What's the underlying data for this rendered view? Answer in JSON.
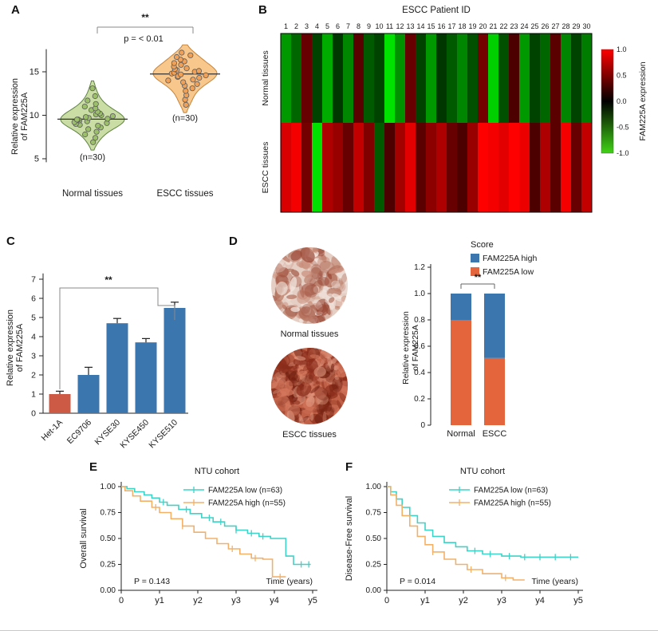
{
  "panel_labels": [
    "A",
    "B",
    "C",
    "D",
    "E",
    "F"
  ],
  "chart_data": [
    {
      "id": "A",
      "type": "violin",
      "ylabel_lines": [
        "Relative expression",
        "of FAM225A"
      ],
      "yticks": [
        5,
        10,
        15
      ],
      "ylim": [
        4.5,
        18.5
      ],
      "significance": "**",
      "p_label": "p = < 0.01",
      "groups": [
        {
          "name": "Normal tissues",
          "n_label": "(n=30)",
          "fill": "#c9dda5",
          "stroke": "#5f8440",
          "point_fill": "#9cc06a",
          "median": 9.55,
          "values": [
            6.9,
            7.4,
            7.8,
            8.1,
            8.4,
            8.6,
            8.8,
            8.9,
            9.0,
            9.1,
            9.2,
            9.3,
            9.4,
            9.5,
            9.5,
            9.6,
            9.7,
            9.8,
            9.9,
            10.0,
            10.1,
            10.2,
            10.4,
            10.6,
            10.8,
            11.0,
            11.3,
            11.7,
            12.2,
            13.1
          ]
        },
        {
          "name": "ESCC tissues",
          "n_label": "(n=30)",
          "fill": "#f8c78c",
          "stroke": "#c6853c",
          "point_fill": "#f1a157",
          "median": 14.75,
          "values": [
            11.2,
            11.8,
            12.3,
            12.8,
            13.1,
            13.4,
            13.6,
            13.8,
            14.0,
            14.1,
            14.3,
            14.4,
            14.5,
            14.6,
            14.7,
            14.8,
            14.9,
            15.0,
            15.1,
            15.2,
            15.3,
            15.4,
            15.6,
            15.8,
            16.0,
            16.2,
            16.4,
            16.7,
            16.9,
            17.2
          ]
        }
      ]
    },
    {
      "id": "B",
      "type": "heatmap",
      "title": "ESCC Patient ID",
      "columns": [
        "1",
        "2",
        "3",
        "4",
        "5",
        "6",
        "7",
        "8",
        "9",
        "10",
        "11",
        "12",
        "13",
        "14",
        "15",
        "16",
        "17",
        "18",
        "19",
        "20",
        "21",
        "22",
        "23",
        "24",
        "25",
        "26",
        "27",
        "28",
        "29",
        "30"
      ],
      "rows": [
        {
          "name": "Normal tissues",
          "values": [
            -0.6,
            -0.35,
            0.3,
            -0.2,
            -0.7,
            -0.15,
            -0.5,
            0.25,
            -0.3,
            -0.2,
            -1.0,
            -0.55,
            0.3,
            -0.2,
            -0.6,
            -0.15,
            -0.3,
            -0.5,
            -0.25,
            0.35,
            -0.9,
            -0.25,
            0.2,
            -0.6,
            -0.2,
            -0.35,
            0.25,
            -0.5,
            -0.2,
            -0.45
          ]
        },
        {
          "name": "ESCC tissues",
          "values": [
            0.8,
            0.95,
            0.35,
            -1.0,
            0.6,
            0.5,
            0.3,
            0.7,
            0.4,
            -0.3,
            0.2,
            0.55,
            0.85,
            0.25,
            0.45,
            0.6,
            0.3,
            0.2,
            0.5,
            1.0,
            0.95,
            0.85,
            1.0,
            0.9,
            0.2,
            0.6,
            0.25,
            0.95,
            0.3,
            0.7
          ]
        }
      ],
      "colorbar": {
        "title": "FAM225A expression",
        "ticks": [
          1.0,
          0.5,
          0.0,
          -0.5,
          -1.0
        ],
        "max_color": "#ff0000",
        "mid_color": "#000000",
        "min_color": "#3fd314"
      }
    },
    {
      "id": "C",
      "type": "bar",
      "categories": [
        "Het-1A",
        "EC9706",
        "KYSE30",
        "KYSE450",
        "KYSE510"
      ],
      "values": [
        1.0,
        2.0,
        4.7,
        3.7,
        5.5
      ],
      "errors": [
        0.15,
        0.4,
        0.25,
        0.2,
        0.3
      ],
      "bar_colors": [
        "#cd5a44",
        "#3c76ae",
        "#3c76ae",
        "#3c76ae",
        "#3c76ae"
      ],
      "ylabel_lines": [
        "Relative expression",
        "of FAM225A"
      ],
      "yticks": [
        0,
        1,
        2,
        3,
        4,
        5,
        6,
        7
      ],
      "ylim": [
        0,
        7
      ],
      "significance": "**"
    },
    {
      "id": "D",
      "type": "stacked_bar_with_images",
      "images": [
        {
          "caption": "Normal tissues",
          "base": "#e5cfc4",
          "blob_colors": [
            "#9c4a38",
            "#c98d7a",
            "#f2e6df",
            "#b06a55"
          ],
          "density": 150,
          "seed": 7
        },
        {
          "caption": "ESCC tissues",
          "base": "#bf6047",
          "blob_colors": [
            "#8a2c1a",
            "#d3765c",
            "#701f10",
            "#e09a82"
          ],
          "density": 240,
          "seed": 13
        }
      ],
      "legend": {
        "title": "Score",
        "items": [
          {
            "label": "FAM225A high",
            "color": "#3c76ae"
          },
          {
            "label": "FAM225A low",
            "color": "#e4643c"
          }
        ]
      },
      "categories": [
        "Normal",
        "ESCC"
      ],
      "series": [
        {
          "name": "FAM225A low",
          "color": "#e4643c",
          "values": [
            0.8,
            0.51
          ]
        },
        {
          "name": "FAM225A high",
          "color": "#3c76ae",
          "values": [
            0.2,
            0.49
          ]
        }
      ],
      "ylabel_lines": [
        "Relative expression",
        "of FAM225A"
      ],
      "yticks": [
        0,
        0.2,
        0.4,
        0.6,
        0.8,
        1.0,
        1.2
      ],
      "ylim": [
        0,
        1.2
      ],
      "significance": "**"
    },
    {
      "id": "E",
      "type": "km",
      "title": "NTU cohort",
      "ylabel": "Overall survival",
      "xlabel": "Time (years)",
      "p_label": "P = 0.143",
      "yticks": [
        1.0,
        0.75,
        0.5,
        0.25,
        0.0
      ],
      "xticks": [
        "0",
        "y1",
        "y2",
        "y3",
        "y4",
        "y5"
      ],
      "series": [
        {
          "name": "FAM225A low (n=63)",
          "color": "#3fd2c7",
          "steps": [
            [
              0,
              1.0
            ],
            [
              0.15,
              0.98
            ],
            [
              0.35,
              0.95
            ],
            [
              0.6,
              0.92
            ],
            [
              0.8,
              0.89
            ],
            [
              1.0,
              0.85
            ],
            [
              1.2,
              0.82
            ],
            [
              1.5,
              0.78
            ],
            [
              1.8,
              0.74
            ],
            [
              2.1,
              0.7
            ],
            [
              2.4,
              0.66
            ],
            [
              2.7,
              0.62
            ],
            [
              3.0,
              0.58
            ],
            [
              3.3,
              0.55
            ],
            [
              3.6,
              0.52
            ],
            [
              3.9,
              0.5
            ],
            [
              4.2,
              0.5
            ],
            [
              4.3,
              0.33
            ],
            [
              4.5,
              0.25
            ],
            [
              4.95,
              0.25
            ]
          ],
          "censors": [
            1.1,
            1.7,
            2.3,
            2.6,
            3.0,
            3.4,
            3.7,
            4.7,
            4.9
          ]
        },
        {
          "name": "FAM225A high (n=55)",
          "color": "#f3b168",
          "steps": [
            [
              0,
              1.0
            ],
            [
              0.1,
              0.96
            ],
            [
              0.3,
              0.91
            ],
            [
              0.5,
              0.86
            ],
            [
              0.8,
              0.8
            ],
            [
              1.0,
              0.75
            ],
            [
              1.3,
              0.69
            ],
            [
              1.6,
              0.62
            ],
            [
              1.9,
              0.56
            ],
            [
              2.2,
              0.5
            ],
            [
              2.5,
              0.45
            ],
            [
              2.8,
              0.4
            ],
            [
              3.1,
              0.35
            ],
            [
              3.4,
              0.31
            ],
            [
              3.7,
              0.3
            ],
            [
              3.95,
              0.13
            ],
            [
              4.3,
              0.13
            ]
          ],
          "censors": [
            0.9,
            1.6,
            2.9,
            3.5,
            4.15
          ]
        }
      ]
    },
    {
      "id": "F",
      "type": "km",
      "title": "NTU cohort",
      "ylabel": "Disease-Free survival",
      "xlabel": "Time (years)",
      "p_label": "P = 0.014",
      "yticks": [
        1.0,
        0.75,
        0.5,
        0.25,
        0.0
      ],
      "xticks": [
        "0",
        "y1",
        "y2",
        "y3",
        "y4",
        "y5"
      ],
      "series": [
        {
          "name": "FAM225A low (n=63)",
          "color": "#3fd2c7",
          "steps": [
            [
              0,
              1.0
            ],
            [
              0.1,
              0.95
            ],
            [
              0.25,
              0.88
            ],
            [
              0.4,
              0.8
            ],
            [
              0.6,
              0.72
            ],
            [
              0.8,
              0.65
            ],
            [
              1.0,
              0.58
            ],
            [
              1.2,
              0.52
            ],
            [
              1.5,
              0.46
            ],
            [
              1.8,
              0.42
            ],
            [
              2.1,
              0.38
            ],
            [
              2.5,
              0.35
            ],
            [
              3.0,
              0.33
            ],
            [
              3.5,
              0.32
            ],
            [
              4.0,
              0.32
            ],
            [
              5.0,
              0.32
            ]
          ],
          "censors": [
            2.3,
            2.7,
            3.2,
            3.6,
            4.0,
            4.4,
            4.8
          ]
        },
        {
          "name": "FAM225A high (n=55)",
          "color": "#f3b168",
          "steps": [
            [
              0,
              1.0
            ],
            [
              0.1,
              0.92
            ],
            [
              0.25,
              0.82
            ],
            [
              0.4,
              0.72
            ],
            [
              0.6,
              0.62
            ],
            [
              0.8,
              0.52
            ],
            [
              1.0,
              0.44
            ],
            [
              1.2,
              0.37
            ],
            [
              1.5,
              0.3
            ],
            [
              1.8,
              0.25
            ],
            [
              2.1,
              0.2
            ],
            [
              2.5,
              0.16
            ],
            [
              3.0,
              0.12
            ],
            [
              3.3,
              0.1
            ],
            [
              3.6,
              0.1
            ]
          ],
          "censors": [
            1.2,
            2.2,
            3.1
          ]
        }
      ]
    }
  ]
}
